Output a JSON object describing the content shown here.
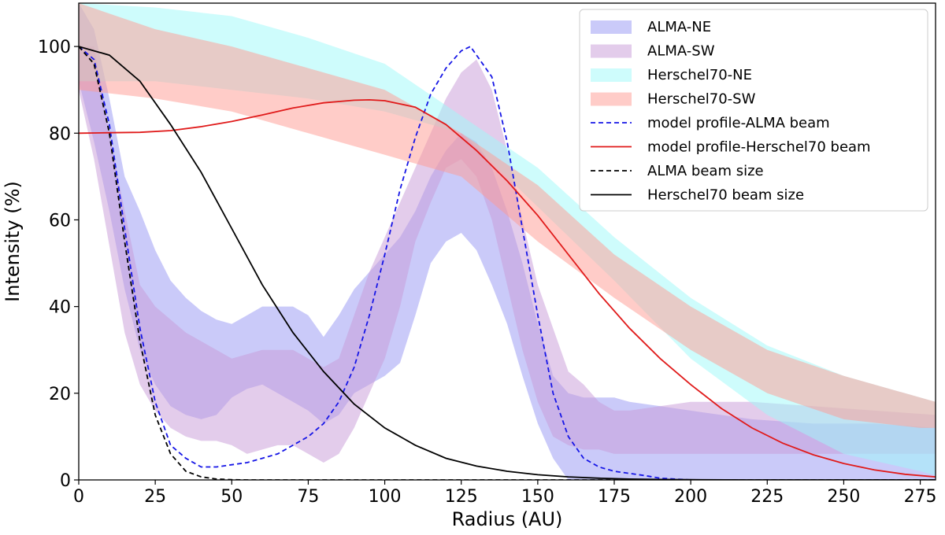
{
  "chart_data": {
    "type": "line",
    "title": "",
    "xlabel": "Radius (AU)",
    "ylabel": "Intensity (%)",
    "xlim": [
      0,
      280
    ],
    "ylim": [
      0,
      110
    ],
    "x_ticks": [
      0,
      25,
      50,
      75,
      100,
      125,
      150,
      175,
      200,
      225,
      250,
      275
    ],
    "y_ticks": [
      0,
      20,
      40,
      60,
      80,
      100
    ],
    "grid": false,
    "legend_position": "top-right",
    "bands": [
      {
        "name": "ALMA-NE",
        "color": "#7b7bf0",
        "opacity": 0.4,
        "x": [
          0,
          5,
          10,
          15,
          20,
          25,
          30,
          35,
          40,
          45,
          50,
          55,
          60,
          65,
          70,
          75,
          80,
          85,
          90,
          95,
          100,
          105,
          110,
          115,
          120,
          125,
          130,
          135,
          140,
          145,
          150,
          155,
          160,
          165,
          170,
          175,
          180,
          190,
          200,
          220,
          240,
          260,
          280
        ],
        "upper": [
          110,
          104,
          88,
          70,
          62,
          53,
          46,
          42,
          39,
          37,
          36,
          38,
          40,
          40,
          40,
          38,
          33,
          38,
          44,
          48,
          52,
          56,
          62,
          70,
          76,
          80,
          78,
          72,
          62,
          50,
          36,
          24,
          20,
          19,
          19,
          19,
          18,
          17,
          16,
          14,
          13,
          13,
          12
        ],
        "lower": [
          92,
          78,
          62,
          44,
          30,
          22,
          17,
          15,
          14,
          15,
          19,
          21,
          22,
          20,
          18,
          16,
          13,
          15,
          20,
          22,
          24,
          27,
          38,
          50,
          55,
          57,
          53,
          45,
          36,
          24,
          13,
          5,
          0,
          0,
          0,
          0,
          0,
          0,
          0,
          0,
          0,
          0,
          0
        ]
      },
      {
        "name": "ALMA-SW",
        "color": "#c89ad8",
        "opacity": 0.5,
        "x": [
          0,
          5,
          10,
          15,
          20,
          25,
          30,
          35,
          40,
          45,
          50,
          55,
          60,
          65,
          70,
          75,
          80,
          85,
          90,
          95,
          100,
          105,
          110,
          115,
          120,
          125,
          130,
          135,
          140,
          145,
          150,
          155,
          160,
          165,
          170,
          175,
          180,
          190,
          200,
          220,
          240,
          260,
          280
        ],
        "upper": [
          100,
          100,
          80,
          62,
          45,
          40,
          37,
          34,
          32,
          30,
          28,
          29,
          30,
          30,
          30,
          28,
          26,
          28,
          38,
          48,
          56,
          64,
          72,
          80,
          88,
          94,
          97,
          90,
          76,
          60,
          45,
          35,
          25,
          22,
          18,
          16,
          16,
          17,
          18,
          18,
          17,
          16,
          15
        ],
        "lower": [
          90,
          74,
          54,
          34,
          22,
          16,
          12,
          10,
          9,
          9,
          8,
          6,
          7,
          8,
          8,
          6,
          4,
          6,
          12,
          20,
          28,
          40,
          55,
          64,
          72,
          74,
          70,
          60,
          45,
          30,
          18,
          10,
          8,
          7,
          7,
          6,
          6,
          6,
          6,
          6,
          6,
          6,
          6
        ]
      },
      {
        "name": "Herschel70-NE",
        "color": "#9efafa",
        "opacity": 0.5,
        "x": [
          0,
          25,
          50,
          75,
          100,
          125,
          150,
          175,
          200,
          225,
          250,
          275,
          280
        ],
        "upper": [
          110,
          109,
          107,
          102,
          96,
          84,
          72,
          56,
          42,
          31,
          24,
          19,
          18
        ],
        "lower": [
          92,
          92,
          90,
          88,
          85,
          80,
          63,
          46,
          28,
          15,
          6,
          2,
          1
        ]
      },
      {
        "name": "Herschel70-SW",
        "color": "#ff9a92",
        "opacity": 0.5,
        "x": [
          0,
          25,
          50,
          75,
          100,
          125,
          150,
          175,
          200,
          225,
          250,
          275,
          280
        ],
        "upper": [
          110,
          104,
          100,
          95,
          90,
          80,
          68,
          52,
          40,
          30,
          24,
          19,
          18
        ],
        "lower": [
          90,
          88,
          85,
          80,
          75,
          70,
          55,
          42,
          30,
          20,
          14,
          12,
          12
        ]
      }
    ],
    "series": [
      {
        "name": "model profile-ALMA beam",
        "color": "#1515e6",
        "dash": "6,4",
        "x": [
          0,
          5,
          10,
          15,
          20,
          25,
          30,
          35,
          40,
          45,
          50,
          55,
          60,
          65,
          70,
          75,
          80,
          85,
          90,
          95,
          100,
          105,
          110,
          115,
          120,
          125,
          128,
          130,
          135,
          140,
          145,
          150,
          155,
          160,
          165,
          170,
          175,
          180,
          185,
          190,
          200,
          220,
          250,
          280
        ],
        "y": [
          100,
          97,
          82,
          58,
          35,
          18,
          8,
          5,
          3,
          3,
          3.5,
          4,
          5,
          6,
          8,
          10,
          13,
          18,
          26,
          38,
          52,
          67,
          79,
          89,
          95,
          99,
          100,
          98,
          93,
          78,
          58,
          38,
          20,
          10,
          5,
          3,
          2,
          1.5,
          1,
          0.4,
          0,
          0,
          0,
          0
        ]
      },
      {
        "name": "model profile-Herschel70 beam",
        "color": "#e01a1a",
        "dash": "",
        "x": [
          0,
          10,
          20,
          30,
          40,
          50,
          60,
          70,
          80,
          90,
          95,
          100,
          110,
          120,
          130,
          140,
          150,
          160,
          170,
          180,
          190,
          200,
          210,
          220,
          230,
          240,
          250,
          260,
          270,
          280
        ],
        "y": [
          80,
          80.1,
          80.2,
          80.6,
          81.5,
          82.7,
          84.2,
          85.8,
          87,
          87.6,
          87.7,
          87.5,
          86,
          82,
          76,
          69,
          61,
          52,
          43,
          35,
          28,
          22,
          16.5,
          12,
          8.5,
          5.8,
          3.8,
          2.3,
          1.3,
          0.7
        ]
      },
      {
        "name": "ALMA beam size",
        "color": "#000000",
        "dash": "6,4",
        "x": [
          0,
          5,
          10,
          15,
          20,
          25,
          30,
          35,
          40,
          45,
          50,
          55,
          60,
          70,
          80,
          100,
          150,
          200,
          280
        ],
        "y": [
          100,
          96,
          80,
          55,
          32,
          15,
          6,
          2,
          0.7,
          0.2,
          0.05,
          0,
          0,
          0,
          0,
          0,
          0,
          0,
          0
        ]
      },
      {
        "name": "Herschel70 beam size",
        "color": "#000000",
        "dash": "",
        "x": [
          0,
          10,
          20,
          30,
          40,
          50,
          60,
          70,
          80,
          90,
          100,
          110,
          120,
          130,
          140,
          150,
          160,
          170,
          180,
          190,
          200,
          220,
          250,
          280
        ],
        "y": [
          100,
          98,
          92,
          82,
          71,
          58,
          45,
          34,
          25,
          17.5,
          12,
          8,
          5,
          3.2,
          2,
          1.2,
          0.7,
          0.4,
          0.2,
          0.1,
          0.05,
          0,
          0,
          0
        ]
      }
    ]
  }
}
